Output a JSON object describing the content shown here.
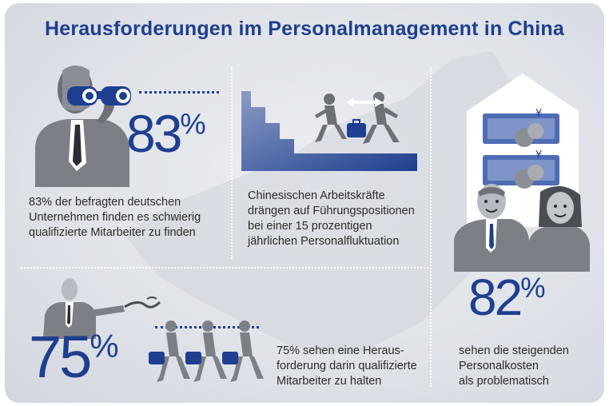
{
  "title": "Herausforderungen im Personalmanagement in China",
  "stats": {
    "s83": {
      "number": "83",
      "unit": "%",
      "text_lines": [
        "83% der befragten deutschen",
        "Unternehmen finden es schwierig",
        "qualifizierte Mitarbeiter zu finden"
      ]
    },
    "fluct": {
      "text_lines": [
        "Chinesischen Arbeitskräfte",
        "drängen auf Führungspositionen",
        "bei einer 15 prozentigen",
        "jährlichen Personalfluktuation"
      ]
    },
    "s82": {
      "number": "82",
      "unit": "%",
      "text_lines": [
        "sehen die steigenden",
        "Personalkosten",
        "als problematisch"
      ]
    },
    "s75": {
      "number": "75",
      "unit": "%",
      "text_lines": [
        "75% sehen eine Heraus-",
        "forderung darin qualifizierte",
        "Mitarbeiter zu halten"
      ]
    }
  },
  "icons": {
    "currency": "¥",
    "binoculars": "binoculars-icon",
    "arrows": "double-arrow-icon"
  },
  "colors": {
    "accent": "#1e3f8f",
    "figure_gray": "#7c7f86",
    "background": "#dfe2e8"
  }
}
